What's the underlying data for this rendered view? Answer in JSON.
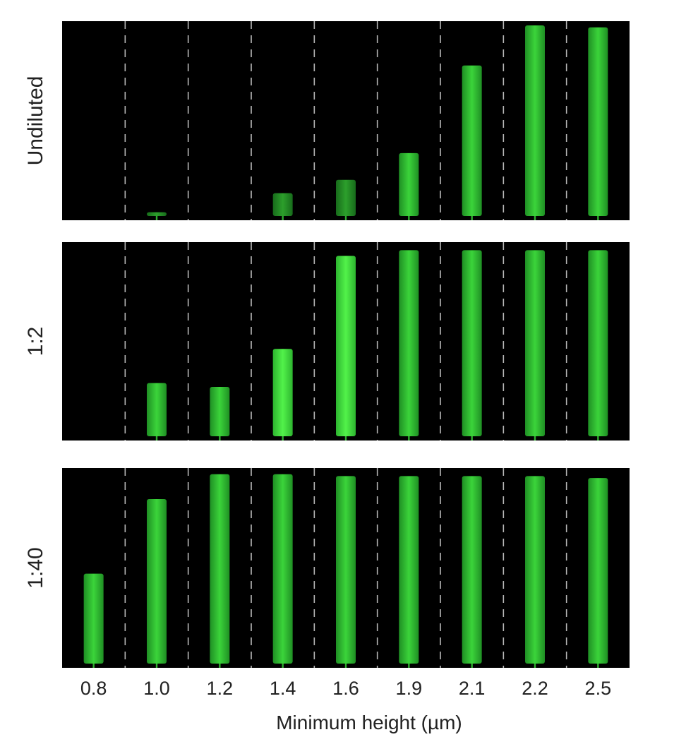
{
  "chart_data": {
    "type": "bar",
    "title": "",
    "xlabel": "Minimum height (µm)",
    "ylabel": "",
    "categories": [
      "0.8",
      "1.0",
      "1.2",
      "1.4",
      "1.6",
      "1.9",
      "2.1",
      "2.2",
      "2.5"
    ],
    "ylim": [
      0,
      1
    ],
    "grid": "dashed vertical separators between columns",
    "legend": "none",
    "series": [
      {
        "name": "Undiluted",
        "values": [
          0.0,
          0.02,
          0.0,
          0.12,
          0.19,
          0.33,
          0.79,
          1.0,
          0.99
        ]
      },
      {
        "name": "1:2",
        "values": [
          0.0,
          0.28,
          0.26,
          0.46,
          0.95,
          0.98,
          0.98,
          0.98,
          0.98
        ]
      },
      {
        "name": "1:40",
        "values": [
          0.47,
          0.86,
          0.99,
          0.99,
          0.98,
          0.98,
          0.98,
          0.98,
          0.97
        ]
      }
    ]
  },
  "colors": {
    "panel_background": "#000000",
    "fill": "#2fae2f",
    "fill_bright": "#44e83e",
    "separator": "#b8b8b8",
    "text": "#222222"
  }
}
